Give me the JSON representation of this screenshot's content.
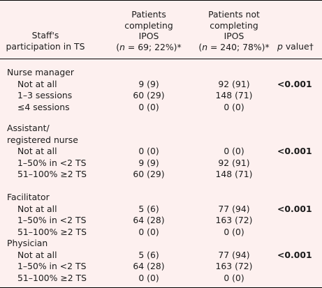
{
  "header": {
    "col1": [
      "Staff's",
      "participation in TS"
    ],
    "col2": [
      "Patients",
      "completing",
      "IPOS"
    ],
    "col2_n": {
      "prefix": "(",
      "n": "n",
      "rest": " = 69; 22%)*"
    },
    "col3": [
      "Patients not",
      "completing",
      "IPOS"
    ],
    "col3_n": {
      "prefix": "(",
      "n": "n",
      "rest": " = 240; 78%)*"
    },
    "col4": {
      "p": "p",
      "rest": " value†"
    }
  },
  "groups": [
    {
      "title": [
        "Nurse manager"
      ],
      "pvalue": "<0.001",
      "rows": [
        {
          "label": "Not at all",
          "completing": "9 (9)",
          "not_completing": "92 (91)"
        },
        {
          "label": "1–3 sessions",
          "completing": "60 (29)",
          "not_completing": "148 (71)"
        },
        {
          "label": "≤4 sessions",
          "completing": "0 (0)",
          "not_completing": "0 (0)"
        }
      ]
    },
    {
      "title": [
        "Assistant/",
        "registered nurse"
      ],
      "pvalue": "<0.001",
      "rows": [
        {
          "label": "Not at all",
          "completing": "0 (0)",
          "not_completing": "0 (0)"
        },
        {
          "label": "1–50% in <2 TS",
          "completing": "9 (9)",
          "not_completing": "92 (91)"
        },
        {
          "label": "51–100% ≥2 TS",
          "completing": "60 (29)",
          "not_completing": "148 (71)"
        }
      ]
    },
    {
      "title": [
        "Facilitator"
      ],
      "pvalue": "<0.001",
      "rows": [
        {
          "label": "Not at all",
          "completing": "5 (6)",
          "not_completing": "77 (94)"
        },
        {
          "label": "1–50% in <2 TS",
          "completing": "64 (28)",
          "not_completing": "163 (72)"
        },
        {
          "label": "51–100% ≥2 TS",
          "completing": "0 (0)",
          "not_completing": "0 (0)"
        }
      ]
    },
    {
      "title": [
        "Physician"
      ],
      "pvalue": "<0.001",
      "rows": [
        {
          "label": "Not at all",
          "completing": "5 (6)",
          "not_completing": "77 (94)"
        },
        {
          "label": "1–50% in <2 TS",
          "completing": "64 (28)",
          "not_completing": "163 (72)"
        },
        {
          "label": "51–100% ≥2 TS",
          "completing": "0 (0)",
          "not_completing": "0 (0)"
        }
      ]
    }
  ]
}
